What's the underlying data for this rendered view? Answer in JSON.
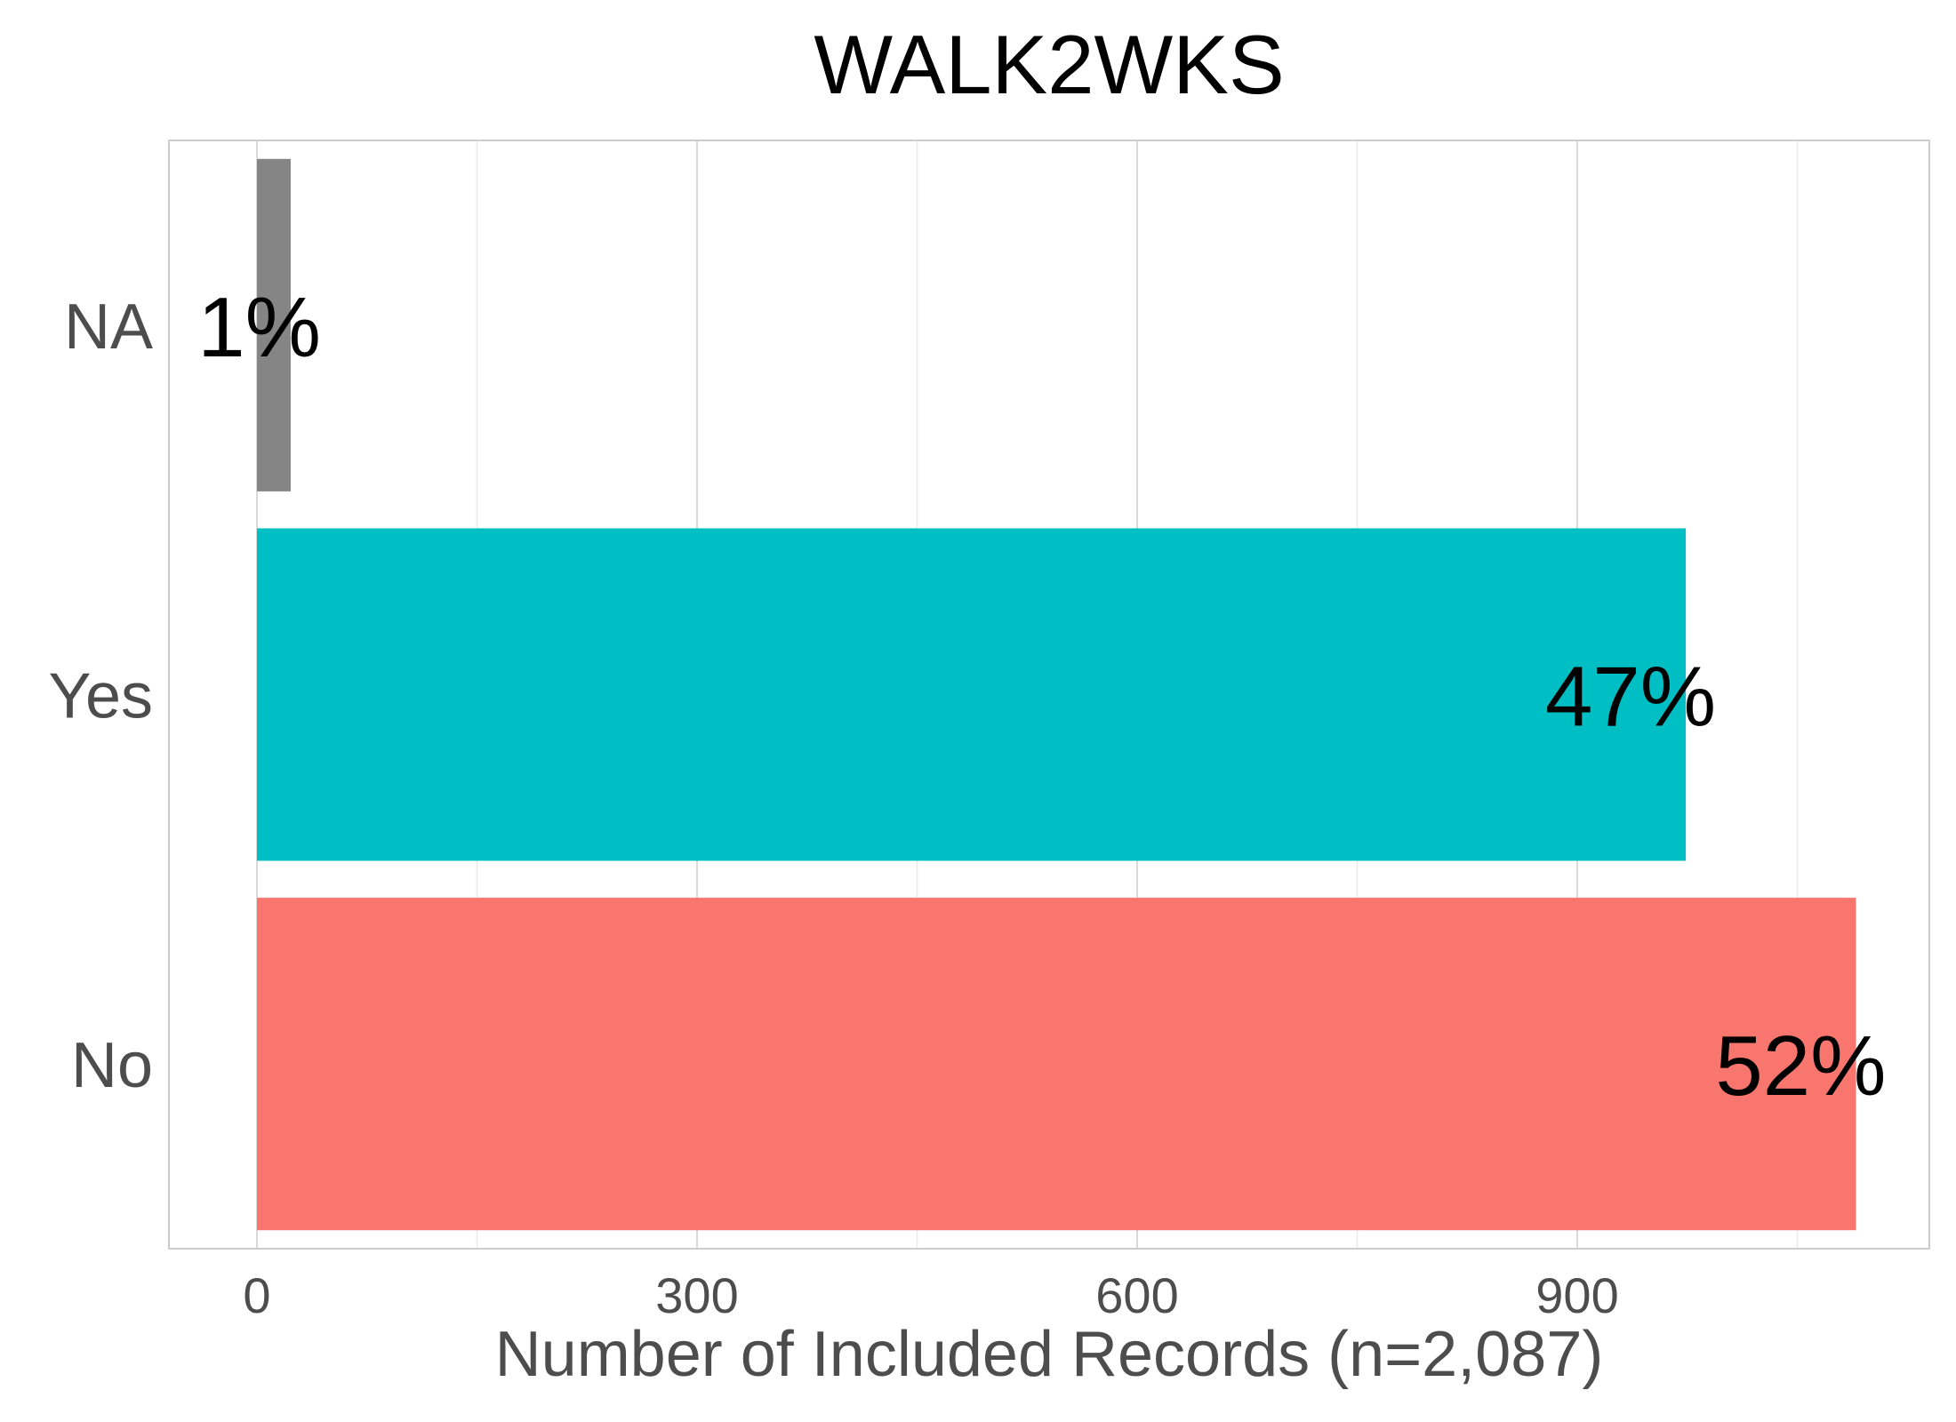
{
  "chart_data": {
    "type": "bar",
    "orientation": "horizontal",
    "title": "WALK2WKS",
    "xlabel": "Number of Included Records (n=2,087)",
    "ylabel": "",
    "xlim": [
      -60,
      1140
    ],
    "xticks": [
      0,
      300,
      600,
      900
    ],
    "x_minor_ticks": [
      150,
      450,
      750,
      1050
    ],
    "categories": [
      "NA",
      "Yes",
      "No"
    ],
    "values": [
      23,
      974,
      1090
    ],
    "labels": [
      "1%",
      "47%",
      "52%"
    ],
    "colors": [
      "#858585",
      "#00bfc4",
      "#f8766d"
    ],
    "grid": true,
    "legend": "none"
  }
}
